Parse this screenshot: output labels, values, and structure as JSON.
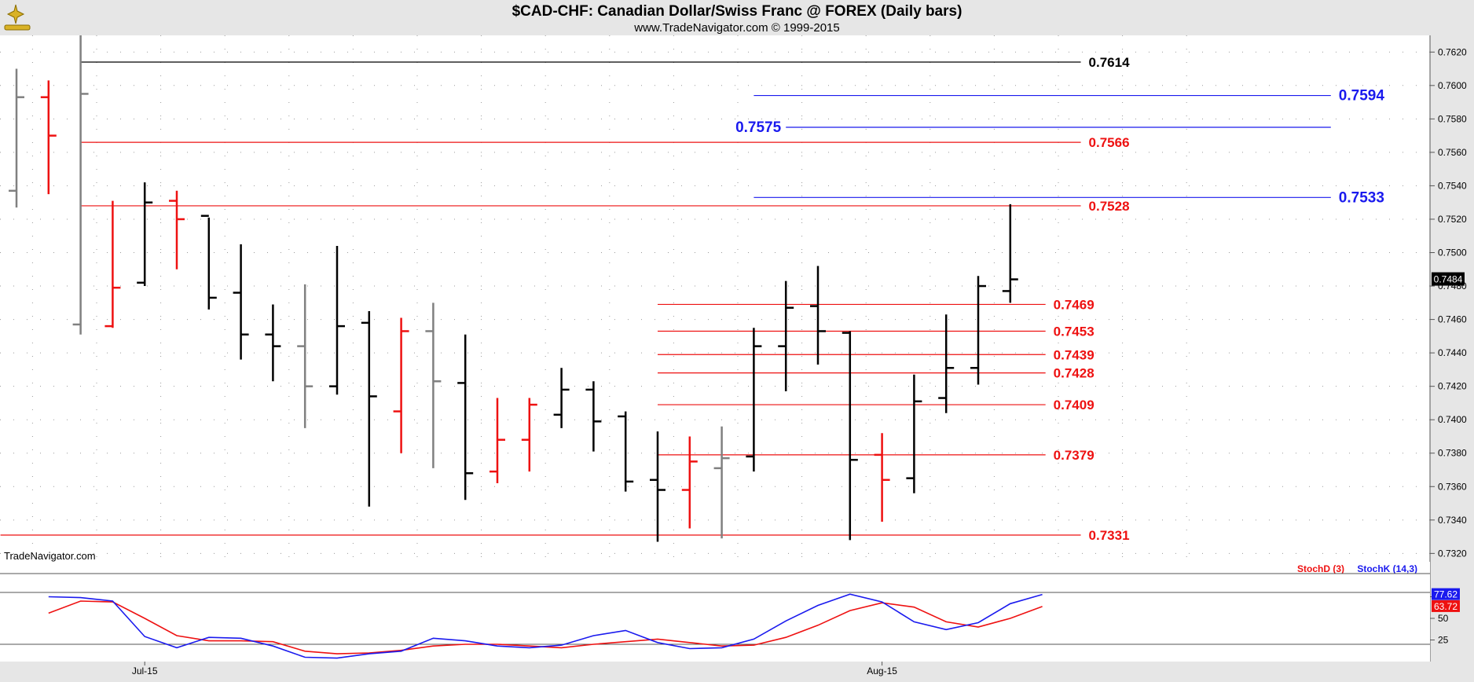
{
  "header": {
    "title": "$CAD-CHF:  Canadian Dollar/Swiss Franc @ FOREX  (Daily bars)",
    "subtitle": "www.TradeNavigator.com © 1999-2015",
    "watermark": "TradeNavigator.com"
  },
  "colors": {
    "background": "#ffffff",
    "frame": "#e6e6e6",
    "bar_default": "#000000",
    "bar_down": "#ee1111",
    "bar_inside": "#808080",
    "level_black": "#000000",
    "level_red": "#ee1111",
    "level_blue": "#1a1aee",
    "stoch_d": "#ee1111",
    "stoch_k": "#1a1aee"
  },
  "chart_data": [
    {
      "type": "ohlc",
      "title": "$CAD-CHF:  Canadian Dollar/Swiss Franc @ FOREX  (Daily bars)",
      "ylim": [
        0.7315,
        0.763
      ],
      "y_ticks": [
        "0.7320",
        "0.7340",
        "0.7360",
        "0.7380",
        "0.7400",
        "0.7420",
        "0.7440",
        "0.7460",
        "0.7480",
        "0.7500",
        "0.7520",
        "0.7540",
        "0.7560",
        "0.7580",
        "0.7600",
        "0.7620"
      ],
      "x_tick_labels": [
        {
          "label": "Jul-15",
          "bar": 4
        },
        {
          "label": "Aug-15",
          "bar": 27
        }
      ],
      "last_price": "0.7484",
      "bars": [
        {
          "open": 0.7537,
          "high": 0.761,
          "low": 0.7527,
          "close": 0.7593,
          "color": "gray"
        },
        {
          "open": 0.7593,
          "high": 0.7603,
          "low": 0.7535,
          "close": 0.757,
          "color": "red"
        },
        {
          "open": 0.7457,
          "high": 0.763,
          "low": 0.7451,
          "close": 0.7595,
          "color": "gray"
        },
        {
          "open": 0.7456,
          "high": 0.7531,
          "low": 0.7455,
          "close": 0.7479,
          "color": "red"
        },
        {
          "open": 0.7482,
          "high": 0.7542,
          "low": 0.748,
          "close": 0.753,
          "color": "black"
        },
        {
          "open": 0.7531,
          "high": 0.7537,
          "low": 0.749,
          "close": 0.752,
          "color": "red"
        },
        {
          "open": 0.7522,
          "high": 0.7521,
          "low": 0.7466,
          "close": 0.7473,
          "color": "black"
        },
        {
          "open": 0.7476,
          "high": 0.7505,
          "low": 0.7436,
          "close": 0.7451,
          "color": "black"
        },
        {
          "open": 0.7451,
          "high": 0.7469,
          "low": 0.7423,
          "close": 0.7444,
          "color": "black"
        },
        {
          "open": 0.7444,
          "high": 0.7481,
          "low": 0.7395,
          "close": 0.742,
          "color": "gray"
        },
        {
          "open": 0.742,
          "high": 0.7504,
          "low": 0.7415,
          "close": 0.7456,
          "color": "black"
        },
        {
          "open": 0.7458,
          "high": 0.7465,
          "low": 0.7348,
          "close": 0.7414,
          "color": "black"
        },
        {
          "open": 0.7405,
          "high": 0.7461,
          "low": 0.738,
          "close": 0.7453,
          "color": "red"
        },
        {
          "open": 0.7453,
          "high": 0.747,
          "low": 0.7371,
          "close": 0.7423,
          "color": "gray"
        },
        {
          "open": 0.7422,
          "high": 0.7451,
          "low": 0.7352,
          "close": 0.7368,
          "color": "black"
        },
        {
          "open": 0.7369,
          "high": 0.7413,
          "low": 0.7362,
          "close": 0.7388,
          "color": "red"
        },
        {
          "open": 0.7388,
          "high": 0.7413,
          "low": 0.7369,
          "close": 0.7409,
          "color": "red"
        },
        {
          "open": 0.7403,
          "high": 0.7431,
          "low": 0.7395,
          "close": 0.7418,
          "color": "black"
        },
        {
          "open": 0.7418,
          "high": 0.7423,
          "low": 0.7381,
          "close": 0.7399,
          "color": "black"
        },
        {
          "open": 0.7402,
          "high": 0.7405,
          "low": 0.7357,
          "close": 0.7363,
          "color": "black"
        },
        {
          "open": 0.7364,
          "high": 0.7393,
          "low": 0.7327,
          "close": 0.7358,
          "color": "black"
        },
        {
          "open": 0.7358,
          "high": 0.739,
          "low": 0.7335,
          "close": 0.7375,
          "color": "red"
        },
        {
          "open": 0.7371,
          "high": 0.7396,
          "low": 0.7329,
          "close": 0.7377,
          "color": "gray"
        },
        {
          "open": 0.7378,
          "high": 0.7455,
          "low": 0.7369,
          "close": 0.7444,
          "color": "black"
        },
        {
          "open": 0.7444,
          "high": 0.7483,
          "low": 0.7417,
          "close": 0.7467,
          "color": "black"
        },
        {
          "open": 0.7468,
          "high": 0.7492,
          "low": 0.7433,
          "close": 0.7453,
          "color": "black"
        },
        {
          "open": 0.7452,
          "high": 0.7453,
          "low": 0.7328,
          "close": 0.7376,
          "color": "black"
        },
        {
          "open": 0.7379,
          "high": 0.7392,
          "low": 0.7339,
          "close": 0.7364,
          "color": "red"
        },
        {
          "open": 0.7365,
          "high": 0.7427,
          "low": 0.7356,
          "close": 0.7411,
          "color": "black"
        },
        {
          "open": 0.7413,
          "high": 0.7463,
          "low": 0.7404,
          "close": 0.7431,
          "color": "black"
        },
        {
          "open": 0.7431,
          "high": 0.7486,
          "low": 0.7421,
          "close": 0.748,
          "color": "black"
        },
        {
          "open": 0.7477,
          "high": 0.7529,
          "low": 0.747,
          "close": 0.7484,
          "color": "black"
        }
      ],
      "levels": [
        {
          "value": "0.7614",
          "y": 0.7614,
          "color": "black",
          "start_bar": 2,
          "end_bar": 33.2,
          "label_side": "right"
        },
        {
          "value": "0.7594",
          "y": 0.7594,
          "color": "blue",
          "start_bar": 23,
          "end_bar": 41,
          "label_side": "right"
        },
        {
          "value": "0.7575",
          "y": 0.7575,
          "color": "blue",
          "start_bar": 24,
          "end_bar": 41,
          "label_side": "left"
        },
        {
          "value": "0.7566",
          "y": 0.7566,
          "color": "red",
          "start_bar": 2,
          "end_bar": 33.2,
          "label_side": "right"
        },
        {
          "value": "0.7533",
          "y": 0.7533,
          "color": "blue",
          "start_bar": 23,
          "end_bar": 41,
          "label_side": "right"
        },
        {
          "value": "0.7528",
          "y": 0.7528,
          "color": "red",
          "start_bar": 2,
          "end_bar": 33.2,
          "label_side": "right"
        },
        {
          "value": "0.7469",
          "y": 0.7469,
          "color": "red",
          "start_bar": 20,
          "end_bar": 32.1,
          "label_side": "right"
        },
        {
          "value": "0.7453",
          "y": 0.7453,
          "color": "red",
          "start_bar": 20,
          "end_bar": 32.1,
          "label_side": "right"
        },
        {
          "value": "0.7439",
          "y": 0.7439,
          "color": "red",
          "start_bar": 20,
          "end_bar": 32.1,
          "label_side": "right"
        },
        {
          "value": "0.7428",
          "y": 0.7428,
          "color": "red",
          "start_bar": 20,
          "end_bar": 32.1,
          "label_side": "right"
        },
        {
          "value": "0.7409",
          "y": 0.7409,
          "color": "red",
          "start_bar": 20,
          "end_bar": 32.1,
          "label_side": "right"
        },
        {
          "value": "0.7379",
          "y": 0.7379,
          "color": "red",
          "start_bar": 20,
          "end_bar": 32.1,
          "label_side": "right"
        },
        {
          "value": "0.7331",
          "y": 0.7331,
          "color": "red",
          "start_bar": -0.5,
          "end_bar": 33.2,
          "label_side": "right"
        }
      ]
    },
    {
      "type": "line",
      "ylim": [
        0,
        100
      ],
      "y_ticks": [
        "25",
        "50",
        "75"
      ],
      "ref_lines": [
        20,
        80
      ],
      "legend": [
        "StochD (3)",
        "StochK (14,3)"
      ],
      "series": [
        {
          "name": "StochD (3)",
          "color": "red",
          "last_label": "63.72",
          "values": [
            null,
            56,
            70,
            69,
            50,
            30,
            24,
            24,
            23,
            12,
            9,
            10,
            13,
            18,
            20,
            20,
            18,
            16,
            20,
            23,
            26,
            22,
            18,
            19,
            28,
            42,
            59,
            68,
            63,
            46,
            40,
            50,
            63.72
          ]
        },
        {
          "name": "StochK (14,3)",
          "color": "blue",
          "last_label": "77.62",
          "values": [
            null,
            75,
            74,
            70,
            29,
            16,
            28,
            27,
            18,
            5,
            4,
            9,
            12,
            27,
            24,
            18,
            16,
            19,
            30,
            36,
            22,
            15,
            16,
            26,
            47,
            65,
            78,
            69,
            46,
            37,
            45,
            67,
            77.62
          ]
        }
      ]
    }
  ]
}
